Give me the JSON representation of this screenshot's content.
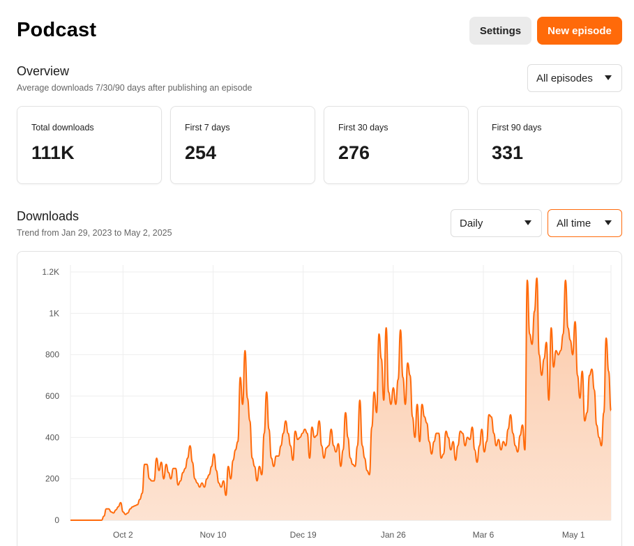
{
  "header": {
    "title": "Podcast",
    "settings_label": "Settings",
    "new_episode_label": "New episode"
  },
  "overview": {
    "title": "Overview",
    "subtitle": "Average downloads 7/30/90 days after publishing an episode",
    "episode_filter": "All episodes",
    "stats": [
      {
        "label": "Total downloads",
        "value": "111K"
      },
      {
        "label": "First 7 days",
        "value": "254"
      },
      {
        "label": "First 30 days",
        "value": "276"
      },
      {
        "label": "First 90 days",
        "value": "331"
      }
    ]
  },
  "downloads": {
    "title": "Downloads",
    "subtitle": "Trend from Jan 29, 2023 to May 2, 2025",
    "interval_filter": "Daily",
    "range_filter": "All time"
  },
  "colors": {
    "accent": "#ff6a0a",
    "area_fill_top": "#fbc9a8",
    "area_fill_bottom": "#fde3d2",
    "grid": "#eeeeee"
  },
  "chart_data": {
    "type": "area",
    "title": "",
    "xlabel": "",
    "ylabel": "",
    "ylim": [
      0,
      1200
    ],
    "grid": true,
    "y_ticks": [
      {
        "value": 0,
        "label": "0"
      },
      {
        "value": 200,
        "label": "200"
      },
      {
        "value": 400,
        "label": "400"
      },
      {
        "value": 600,
        "label": "600"
      },
      {
        "value": 800,
        "label": "800"
      },
      {
        "value": 1000,
        "label": "1K"
      },
      {
        "value": 1200,
        "label": "1.2K"
      }
    ],
    "x_range": [
      0,
      216
    ],
    "x_ticks": [
      {
        "value": 21,
        "label": "Oct 2"
      },
      {
        "value": 57,
        "label": "Nov 10"
      },
      {
        "value": 93,
        "label": "Dec 19"
      },
      {
        "value": 129,
        "label": "Jan 26"
      },
      {
        "value": 165,
        "label": "Mar 6"
      },
      {
        "value": 201,
        "label": "May 1"
      }
    ],
    "series": [
      {
        "values": [
          0,
          0,
          0,
          0,
          0,
          0,
          0,
          0,
          0,
          0,
          0,
          0,
          0,
          0,
          20,
          55,
          55,
          40,
          35,
          50,
          65,
          85,
          40,
          28,
          35,
          55,
          65,
          70,
          75,
          100,
          130,
          270,
          270,
          200,
          190,
          190,
          300,
          240,
          280,
          200,
          270,
          230,
          200,
          250,
          250,
          170,
          190,
          230,
          250,
          300,
          360,
          280,
          200,
          180,
          160,
          180,
          160,
          200,
          220,
          260,
          320,
          240,
          180,
          160,
          190,
          120,
          260,
          200,
          290,
          340,
          380,
          690,
          560,
          820,
          590,
          480,
          300,
          260,
          190,
          260,
          220,
          420,
          620,
          440,
          300,
          260,
          310,
          310,
          360,
          420,
          480,
          420,
          360,
          290,
          430,
          390,
          400,
          420,
          440,
          420,
          300,
          450,
          400,
          410,
          480,
          360,
          300,
          350,
          360,
          440,
          360,
          330,
          370,
          260,
          340,
          520,
          400,
          300,
          270,
          260,
          360,
          580,
          360,
          300,
          240,
          220,
          450,
          620,
          520,
          900,
          780,
          580,
          930,
          620,
          560,
          640,
          560,
          680,
          920,
          690,
          560,
          760,
          700,
          500,
          400,
          560,
          380,
          560,
          500,
          470,
          380,
          320,
          380,
          420,
          420,
          300,
          320,
          430,
          400,
          340,
          380,
          290,
          360,
          430,
          420,
          360,
          400,
          390,
          450,
          340,
          280,
          360,
          440,
          330,
          380,
          510,
          500,
          420,
          360,
          390,
          340,
          380,
          360,
          440,
          510,
          420,
          360,
          330,
          410,
          460,
          340,
          1160,
          900,
          850,
          1010,
          1170,
          800,
          700,
          780,
          860,
          580,
          930,
          740,
          820,
          800,
          820,
          900,
          1160,
          930,
          870,
          800,
          960,
          700,
          590,
          720,
          480,
          520,
          700,
          730,
          630,
          460,
          400,
          360,
          520,
          880,
          720,
          530
        ]
      }
    ]
  }
}
